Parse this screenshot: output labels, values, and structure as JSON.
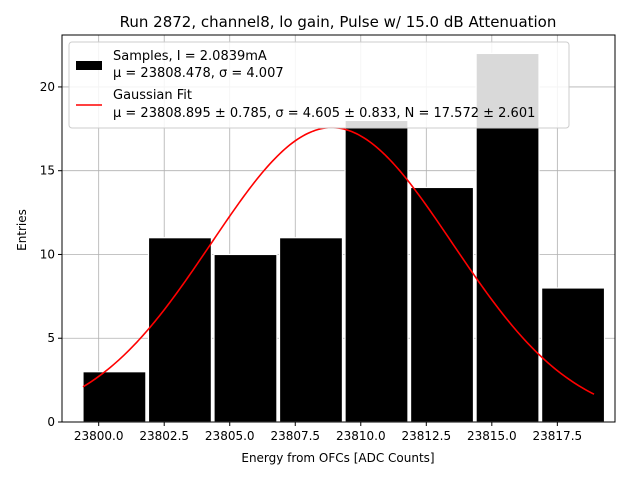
{
  "chart_data": {
    "type": "bar",
    "title": "Run 2872, channel8, lo gain, Pulse w/ 15.0 dB Attenuation",
    "xlabel": "Energy from OFCs [ADC Counts]",
    "ylabel": "Entries",
    "xlim": [
      23798.6,
      23819.7
    ],
    "ylim": [
      0,
      23.1
    ],
    "grid": true,
    "legend_position": "top-left",
    "xticks": [
      23800.0,
      23802.5,
      23805.0,
      23807.5,
      23810.0,
      23812.5,
      23815.0,
      23817.5
    ],
    "xtick_labels": [
      "23800.0",
      "23802.5",
      "23805.0",
      "23807.5",
      "23810.0",
      "23812.5",
      "23815.0",
      "23817.5"
    ],
    "yticks": [
      0,
      5,
      10,
      15,
      20
    ],
    "ytick_labels": [
      "0",
      "5",
      "10",
      "15",
      "20"
    ],
    "bin_edges": [
      23799.4,
      23801.9,
      23804.4,
      23806.9,
      23809.4,
      23811.9,
      23814.4,
      23816.9,
      23819.4
    ],
    "series": [
      {
        "name": "Samples",
        "kind": "histogram",
        "color": "#000000",
        "bins": [
          {
            "x0": 23799.4,
            "x1": 23801.8,
            "count": 3
          },
          {
            "x0": 23801.9,
            "x1": 23804.3,
            "count": 11
          },
          {
            "x0": 23804.4,
            "x1": 23806.8,
            "count": 10
          },
          {
            "x0": 23806.9,
            "x1": 23809.3,
            "count": 11
          },
          {
            "x0": 23809.4,
            "x1": 23811.8,
            "count": 18
          },
          {
            "x0": 23811.9,
            "x1": 23814.3,
            "count": 14
          },
          {
            "x0": 23814.4,
            "x1": 23816.8,
            "count": 22
          },
          {
            "x0": 23816.9,
            "x1": 23819.3,
            "count": 8
          }
        ]
      },
      {
        "name": "Gaussian Fit",
        "kind": "line",
        "color": "#ff0000",
        "mu": 23808.895,
        "sigma": 4.605,
        "N": 17.572,
        "x_range": [
          23799.4,
          23818.9
        ]
      }
    ],
    "legend": [
      {
        "line1": "Samples, I = 2.0839mA",
        "line2": "μ = 23808.478, σ = 4.007",
        "swatch": "box",
        "color": "#000000"
      },
      {
        "line1": "Gaussian Fit",
        "line2": "μ = 23808.895 ± 0.785, σ = 4.605 ± 0.833, N = 17.572 ± 2.601",
        "swatch": "line",
        "color": "#ff0000"
      }
    ]
  }
}
